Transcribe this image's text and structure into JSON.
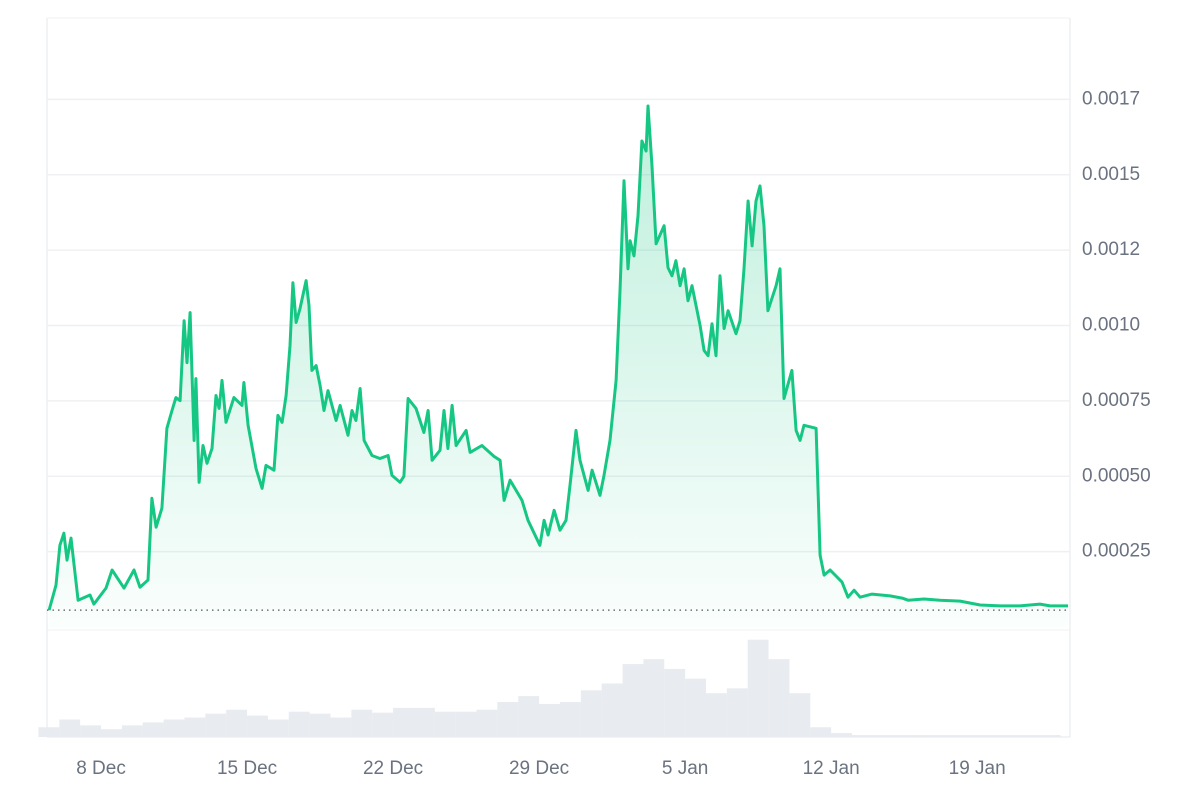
{
  "chart_data": {
    "type": "line",
    "color": "#16c784",
    "grid": true,
    "xlim": [
      5.41,
      54.45
    ],
    "xticks": [
      {
        "value": 8,
        "label": "8 Dec"
      },
      {
        "value": 15,
        "label": "15 Dec"
      },
      {
        "value": 22,
        "label": "22 Dec"
      },
      {
        "value": 29,
        "label": "29 Dec"
      },
      {
        "value": 36,
        "label": "5 Jan"
      },
      {
        "value": 43,
        "label": "12 Jan"
      },
      {
        "value": 50,
        "label": "19 Jan"
      }
    ],
    "ylim": [
      0,
      0.00202
    ],
    "yticks": [
      {
        "value": 0.00025,
        "label": "0.00025"
      },
      {
        "value": 0.0005,
        "label": "0.00050"
      },
      {
        "value": 0.00075,
        "label": "0.00075"
      },
      {
        "value": 0.001,
        "label": "0.0010"
      },
      {
        "value": 0.00125,
        "label": "0.0012"
      },
      {
        "value": 0.0015,
        "label": "0.0015"
      },
      {
        "value": 0.00175,
        "label": "0.0017"
      }
    ],
    "y2lim": [
      0,
      110
    ],
    "series": [
      {
        "color": "#16c784",
        "x": [
          5.51,
          5.84,
          6.03,
          6.22,
          6.37,
          6.56,
          6.9,
          7.47,
          7.66,
          8.24,
          8.53,
          9.1,
          9.58,
          9.87,
          10.25,
          10.44,
          10.64,
          10.92,
          11.16,
          11.4,
          11.59,
          11.79,
          11.98,
          12.12,
          12.27,
          12.46,
          12.55,
          12.7,
          12.89,
          13.08,
          13.32,
          13.51,
          13.66,
          13.8,
          13.99,
          14.37,
          14.76,
          14.85,
          15.05,
          15.43,
          15.72,
          15.91,
          16.29,
          16.48,
          16.68,
          16.87,
          17.06,
          17.2,
          17.35,
          17.54,
          17.83,
          17.97,
          18.11,
          18.31,
          18.5,
          18.69,
          18.88,
          19.27,
          19.46,
          19.84,
          20.03,
          20.22,
          20.42,
          20.61,
          20.99,
          21.37,
          21.76,
          21.95,
          22.33,
          22.52,
          22.72,
          23.1,
          23.48,
          23.68,
          23.87,
          24.25,
          24.44,
          24.63,
          24.83,
          25.02,
          25.5,
          25.69,
          26.26,
          26.84,
          27.13,
          27.32,
          27.61,
          28.18,
          28.47,
          29.04,
          29.24,
          29.43,
          29.72,
          30.0,
          30.29,
          30.48,
          30.77,
          30.96,
          31.35,
          31.54,
          31.92,
          32.11,
          32.4,
          32.69,
          32.88,
          33.07,
          33.26,
          33.36,
          33.55,
          33.74,
          33.93,
          34.13,
          34.22,
          34.41,
          34.61,
          34.99,
          35.18,
          35.37,
          35.56,
          35.76,
          35.95,
          36.14,
          36.33,
          36.72,
          36.91,
          37.1,
          37.29,
          37.48,
          37.67,
          37.87,
          38.06,
          38.44,
          38.63,
          38.82,
          39.02,
          39.21,
          39.4,
          39.59,
          39.78,
          39.97,
          40.36,
          40.55,
          40.74,
          41.12,
          41.32,
          41.51,
          41.7,
          42.28,
          42.47,
          42.66,
          42.95,
          43.52,
          43.81,
          44.1,
          44.39,
          44.96,
          45.82,
          46.4,
          46.69,
          47.45,
          48.22,
          49.18,
          50.14,
          51.1,
          52.05,
          53.01,
          53.49,
          54.36
        ],
        "values": [
          5.6e-05,
          0.000139,
          0.000271,
          0.000311,
          0.000222,
          0.000295,
          8.9e-05,
          0.000106,
          7.6e-05,
          0.000129,
          0.000189,
          0.000129,
          0.000189,
          0.000132,
          0.000156,
          0.000427,
          0.000331,
          0.000394,
          0.000659,
          0.000718,
          0.000761,
          0.000751,
          0.001016,
          0.000877,
          0.001043,
          0.000619,
          0.000824,
          0.00048,
          0.000602,
          0.000543,
          0.000592,
          0.000768,
          0.000725,
          0.000818,
          0.000679,
          0.000761,
          0.000735,
          0.000811,
          0.000669,
          0.000526,
          0.00046,
          0.000536,
          0.00052,
          0.000702,
          0.000679,
          0.000768,
          0.000933,
          0.001142,
          0.00101,
          0.001056,
          0.001149,
          0.001066,
          0.000851,
          0.000867,
          0.000801,
          0.000718,
          0.000784,
          0.000685,
          0.000735,
          0.000636,
          0.000718,
          0.000685,
          0.000791,
          0.000619,
          0.000569,
          0.000559,
          0.000569,
          0.000503,
          0.00048,
          0.0005,
          0.000758,
          0.000725,
          0.000645,
          0.000718,
          0.000553,
          0.000586,
          0.000718,
          0.000592,
          0.000735,
          0.000602,
          0.000652,
          0.000579,
          0.000602,
          0.000566,
          0.000553,
          0.00042,
          0.000487,
          0.00042,
          0.000354,
          0.000271,
          0.000354,
          0.000305,
          0.000387,
          0.000321,
          0.000354,
          0.00047,
          0.000652,
          0.000553,
          0.000453,
          0.00052,
          0.000437,
          0.000503,
          0.000619,
          0.000818,
          0.001115,
          0.00148,
          0.001188,
          0.001281,
          0.001231,
          0.001364,
          0.001612,
          0.001579,
          0.001728,
          0.001529,
          0.001271,
          0.001331,
          0.001192,
          0.001165,
          0.001215,
          0.001132,
          0.001188,
          0.001082,
          0.001132,
          0.001,
          0.000917,
          0.0009,
          0.001006,
          0.0009,
          0.001165,
          0.00099,
          0.001049,
          0.000973,
          0.001016,
          0.001188,
          0.001413,
          0.001264,
          0.001413,
          0.001463,
          0.001331,
          0.001049,
          0.001132,
          0.001188,
          0.000758,
          0.000851,
          0.000652,
          0.000619,
          0.000669,
          0.000659,
          0.000238,
          0.000172,
          0.000189,
          0.000149,
          9.9e-05,
          0.000122,
          9.9e-05,
          0.000109,
          0.000103,
          9.6e-05,
          8.9e-05,
          9.3e-05,
          8.9e-05,
          8.6e-05,
          7.3e-05,
          7e-05,
          7e-05,
          7.6e-05,
          7e-05,
          7e-05
        ]
      },
      {
        "color": "#e8ebef",
        "axis": "y2",
        "type": "bar",
        "x": [
          5.5,
          6.5,
          7.5,
          8.5,
          9.5,
          10.5,
          11.5,
          12.5,
          13.5,
          14.5,
          15.5,
          16.5,
          17.5,
          18.5,
          19.5,
          20.5,
          21.5,
          22.5,
          23.5,
          24.5,
          25.5,
          26.5,
          27.5,
          28.5,
          29.5,
          30.5,
          31.5,
          32.5,
          33.5,
          34.5,
          35.5,
          36.5,
          37.5,
          38.5,
          39.5,
          40.5,
          41.5,
          42.5,
          43.5,
          44.5,
          45.5,
          46.5,
          47.5,
          48.5,
          49.5,
          50.5,
          51.5,
          52.5,
          53.5
        ],
        "values": [
          10,
          18,
          12,
          8,
          12,
          15,
          18,
          20,
          24,
          28,
          22,
          18,
          26,
          24,
          20,
          28,
          25,
          30,
          30,
          26,
          26,
          28,
          36,
          42,
          34,
          36,
          48,
          55,
          75,
          80,
          70,
          60,
          45,
          50,
          100,
          80,
          45,
          10,
          4,
          2,
          2,
          2,
          2,
          2,
          2,
          2,
          2,
          2,
          2
        ]
      }
    ]
  }
}
